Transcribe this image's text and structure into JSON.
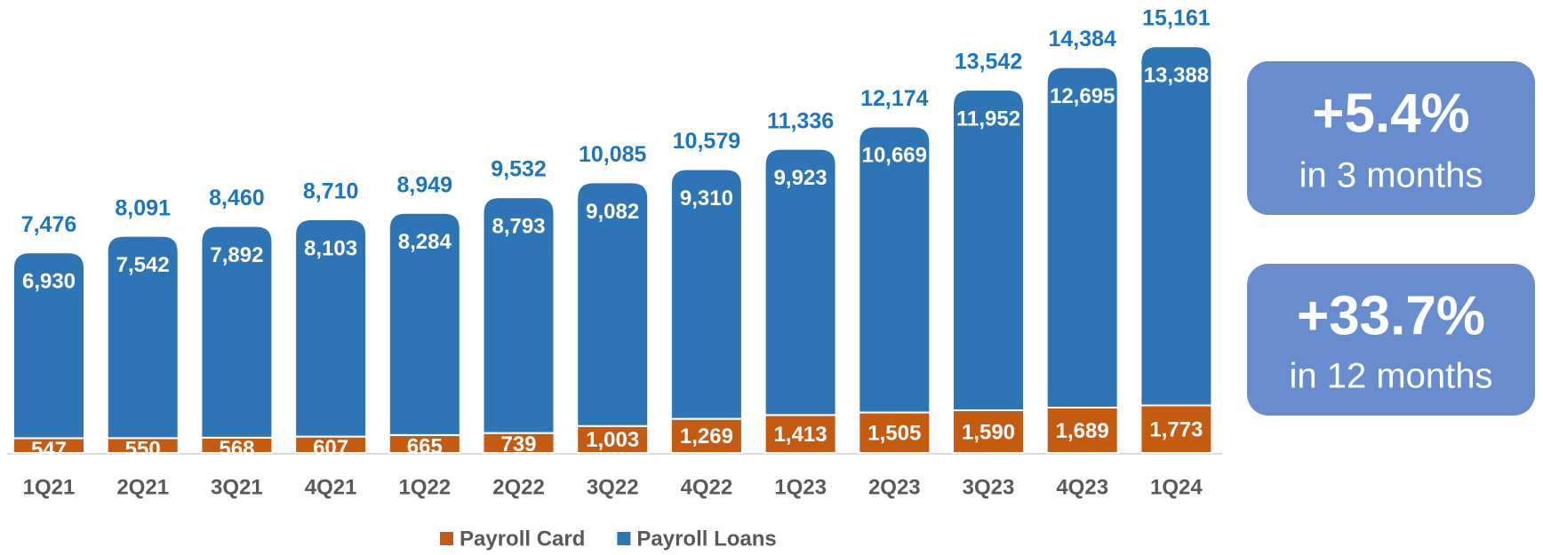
{
  "chart_data": {
    "type": "stacked_bar",
    "categories": [
      "1Q21",
      "2Q21",
      "3Q21",
      "4Q21",
      "1Q22",
      "2Q22",
      "3Q22",
      "4Q22",
      "1Q23",
      "2Q23",
      "3Q23",
      "4Q23",
      "1Q24"
    ],
    "series": [
      {
        "name": "Payroll Card",
        "color": "#c55a11",
        "values": [
          547,
          550,
          568,
          607,
          665,
          739,
          1003,
          1269,
          1413,
          1505,
          1590,
          1689,
          1773
        ],
        "value_labels": [
          "547",
          "550",
          "568",
          "607",
          "665",
          "739",
          "1,003",
          "1,269",
          "1,413",
          "1,505",
          "1,590",
          "1,689",
          "1,773"
        ]
      },
      {
        "name": "Payroll Loans",
        "color": "#2e75b6",
        "values": [
          6930,
          7542,
          7892,
          8103,
          8284,
          8793,
          9082,
          9310,
          9923,
          10669,
          11952,
          12695,
          13388
        ],
        "value_labels": [
          "6,930",
          "7,542",
          "7,892",
          "8,103",
          "8,284",
          "8,793",
          "9,082",
          "9,310",
          "9,923",
          "10,669",
          "11,952",
          "12,695",
          "13,388"
        ]
      }
    ],
    "totals": [
      7476,
      8091,
      8460,
      8710,
      8949,
      9532,
      10085,
      10579,
      11336,
      12174,
      13542,
      14384,
      15161
    ],
    "total_labels": [
      "7,476",
      "8,091",
      "8,460",
      "8,710",
      "8,949",
      "9,532",
      "10,085",
      "10,579",
      "11,336",
      "12,174",
      "13,542",
      "14,384",
      "15,161"
    ],
    "total_color": "#1b75c2",
    "legend": "bottom",
    "callouts": [
      {
        "value": "+5.4%",
        "text": "in 3 months"
      },
      {
        "value": "+33.7%",
        "text": "in 12 months"
      }
    ]
  }
}
